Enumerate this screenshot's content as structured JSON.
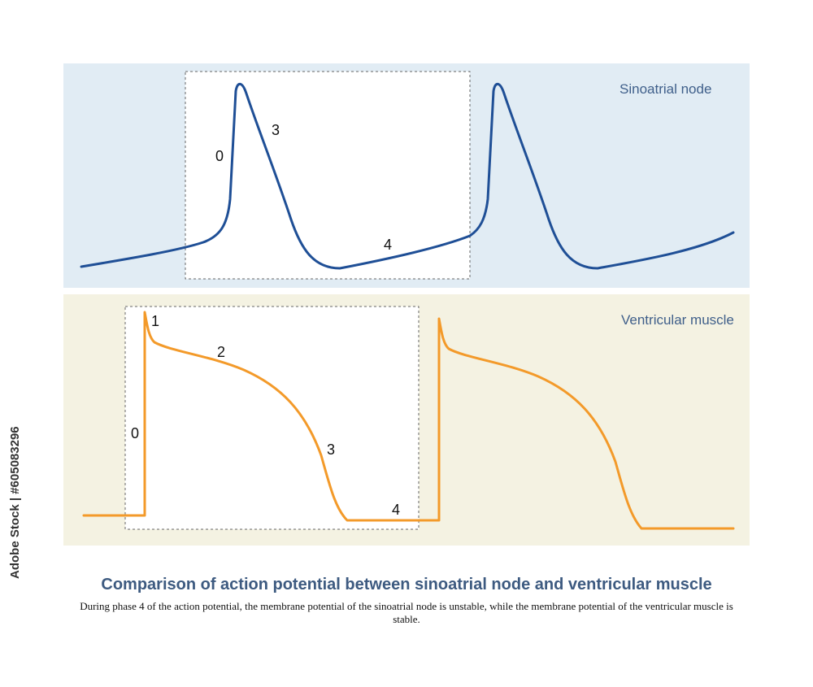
{
  "colors": {
    "sinoatrial_curve": "#1f4f96",
    "ventricular_curve": "#f39a2a",
    "sinoatrial_bg": "#e1ecf4",
    "ventricular_bg": "#f4f2e2",
    "title_text": "#3d5a80",
    "label_text": "#3f5f8a"
  },
  "panels": {
    "sinoatrial": {
      "title": "Sinoatrial node",
      "phases": [
        "0",
        "3",
        "4"
      ]
    },
    "ventricular": {
      "title": "Ventricular muscle",
      "phases": [
        "1",
        "2",
        "0",
        "3",
        "4"
      ]
    }
  },
  "caption": {
    "title": "Comparison of action potential between sinoatrial node and ventricular muscle",
    "text": "During phase 4 of the action potential, the membrane potential of the sinoatrial node is unstable, while the membrane potential of the ventricular muscle is stable."
  },
  "watermark": {
    "id_text": "Adobe Stock | #605083296"
  }
}
